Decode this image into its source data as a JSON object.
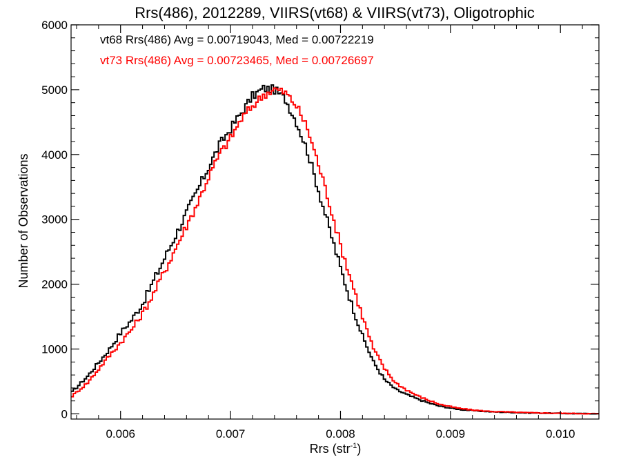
{
  "chart_data": {
    "type": "line",
    "title": "Rrs(486), 2012289, VIIRS(vt68) & VIIRS(vt73), Oligotrophic",
    "xlabel": "Rrs (str",
    "xlabel_sup": "-1",
    "xlabel_close": ")",
    "ylabel": "Number of Observations",
    "xlim": [
      0.00555,
      0.01035
    ],
    "ylim": [
      -80,
      6000
    ],
    "x_ticks": [
      0.006,
      0.007,
      0.008,
      0.009,
      0.01
    ],
    "x_tick_labels": [
      "0.006",
      "0.007",
      "0.008",
      "0.009",
      "0.010"
    ],
    "y_ticks": [
      0,
      1000,
      2000,
      3000,
      4000,
      5000,
      6000
    ],
    "y_tick_labels": [
      "0",
      "1000",
      "2000",
      "3000",
      "4000",
      "5000",
      "6000"
    ],
    "legend_placement": "top-left",
    "series": [
      {
        "name": "vt68",
        "label": "vt68 Rrs(486) Avg = 0.00719043, Med = 0.00722219",
        "color": "#000000",
        "x": [
          0.00555,
          0.0057,
          0.0059,
          0.006,
          0.0061,
          0.0062,
          0.0063,
          0.0064,
          0.0065,
          0.0066,
          0.0067,
          0.0068,
          0.0069,
          0.007,
          0.0071,
          0.0072,
          0.0073,
          0.0074,
          0.0075,
          0.0076,
          0.0077,
          0.0078,
          0.0079,
          0.008,
          0.0081,
          0.0082,
          0.0083,
          0.0084,
          0.0085,
          0.0086,
          0.0087,
          0.0088,
          0.0089,
          0.009,
          0.0091,
          0.0092,
          0.0093,
          0.0094,
          0.0095,
          0.0097,
          0.0099,
          0.0101,
          0.01035
        ],
        "values": [
          320,
          580,
          1000,
          1250,
          1450,
          1700,
          2050,
          2400,
          2750,
          3100,
          3450,
          3800,
          4150,
          4400,
          4650,
          4900,
          5020,
          5000,
          4850,
          4500,
          4050,
          3450,
          2850,
          2250,
          1700,
          1200,
          800,
          530,
          380,
          300,
          230,
          170,
          120,
          90,
          65,
          50,
          40,
          30,
          25,
          15,
          10,
          5,
          3
        ]
      },
      {
        "name": "vt73",
        "label": "vt73 Rrs(486) Avg = 0.00723465, Med = 0.00726697",
        "color": "#ff0000",
        "x": [
          0.00555,
          0.0057,
          0.0059,
          0.006,
          0.0061,
          0.0062,
          0.0063,
          0.0064,
          0.0065,
          0.0066,
          0.0067,
          0.0068,
          0.0069,
          0.007,
          0.0071,
          0.0072,
          0.0073,
          0.0074,
          0.0075,
          0.0076,
          0.0077,
          0.0078,
          0.0079,
          0.008,
          0.0081,
          0.0082,
          0.0083,
          0.0084,
          0.0085,
          0.0086,
          0.0087,
          0.0088,
          0.0089,
          0.009,
          0.0091,
          0.0092,
          0.0093,
          0.0094,
          0.0095,
          0.0097,
          0.0099,
          0.0101,
          0.01035
        ],
        "values": [
          260,
          480,
          900,
          1100,
          1300,
          1550,
          1850,
          2200,
          2550,
          2900,
          3250,
          3650,
          4000,
          4250,
          4550,
          4750,
          4920,
          5010,
          4950,
          4750,
          4400,
          3850,
          3250,
          2600,
          2050,
          1500,
          1000,
          700,
          480,
          370,
          280,
          210,
          150,
          110,
          80,
          60,
          45,
          35,
          30,
          18,
          12,
          6,
          3
        ]
      }
    ]
  }
}
